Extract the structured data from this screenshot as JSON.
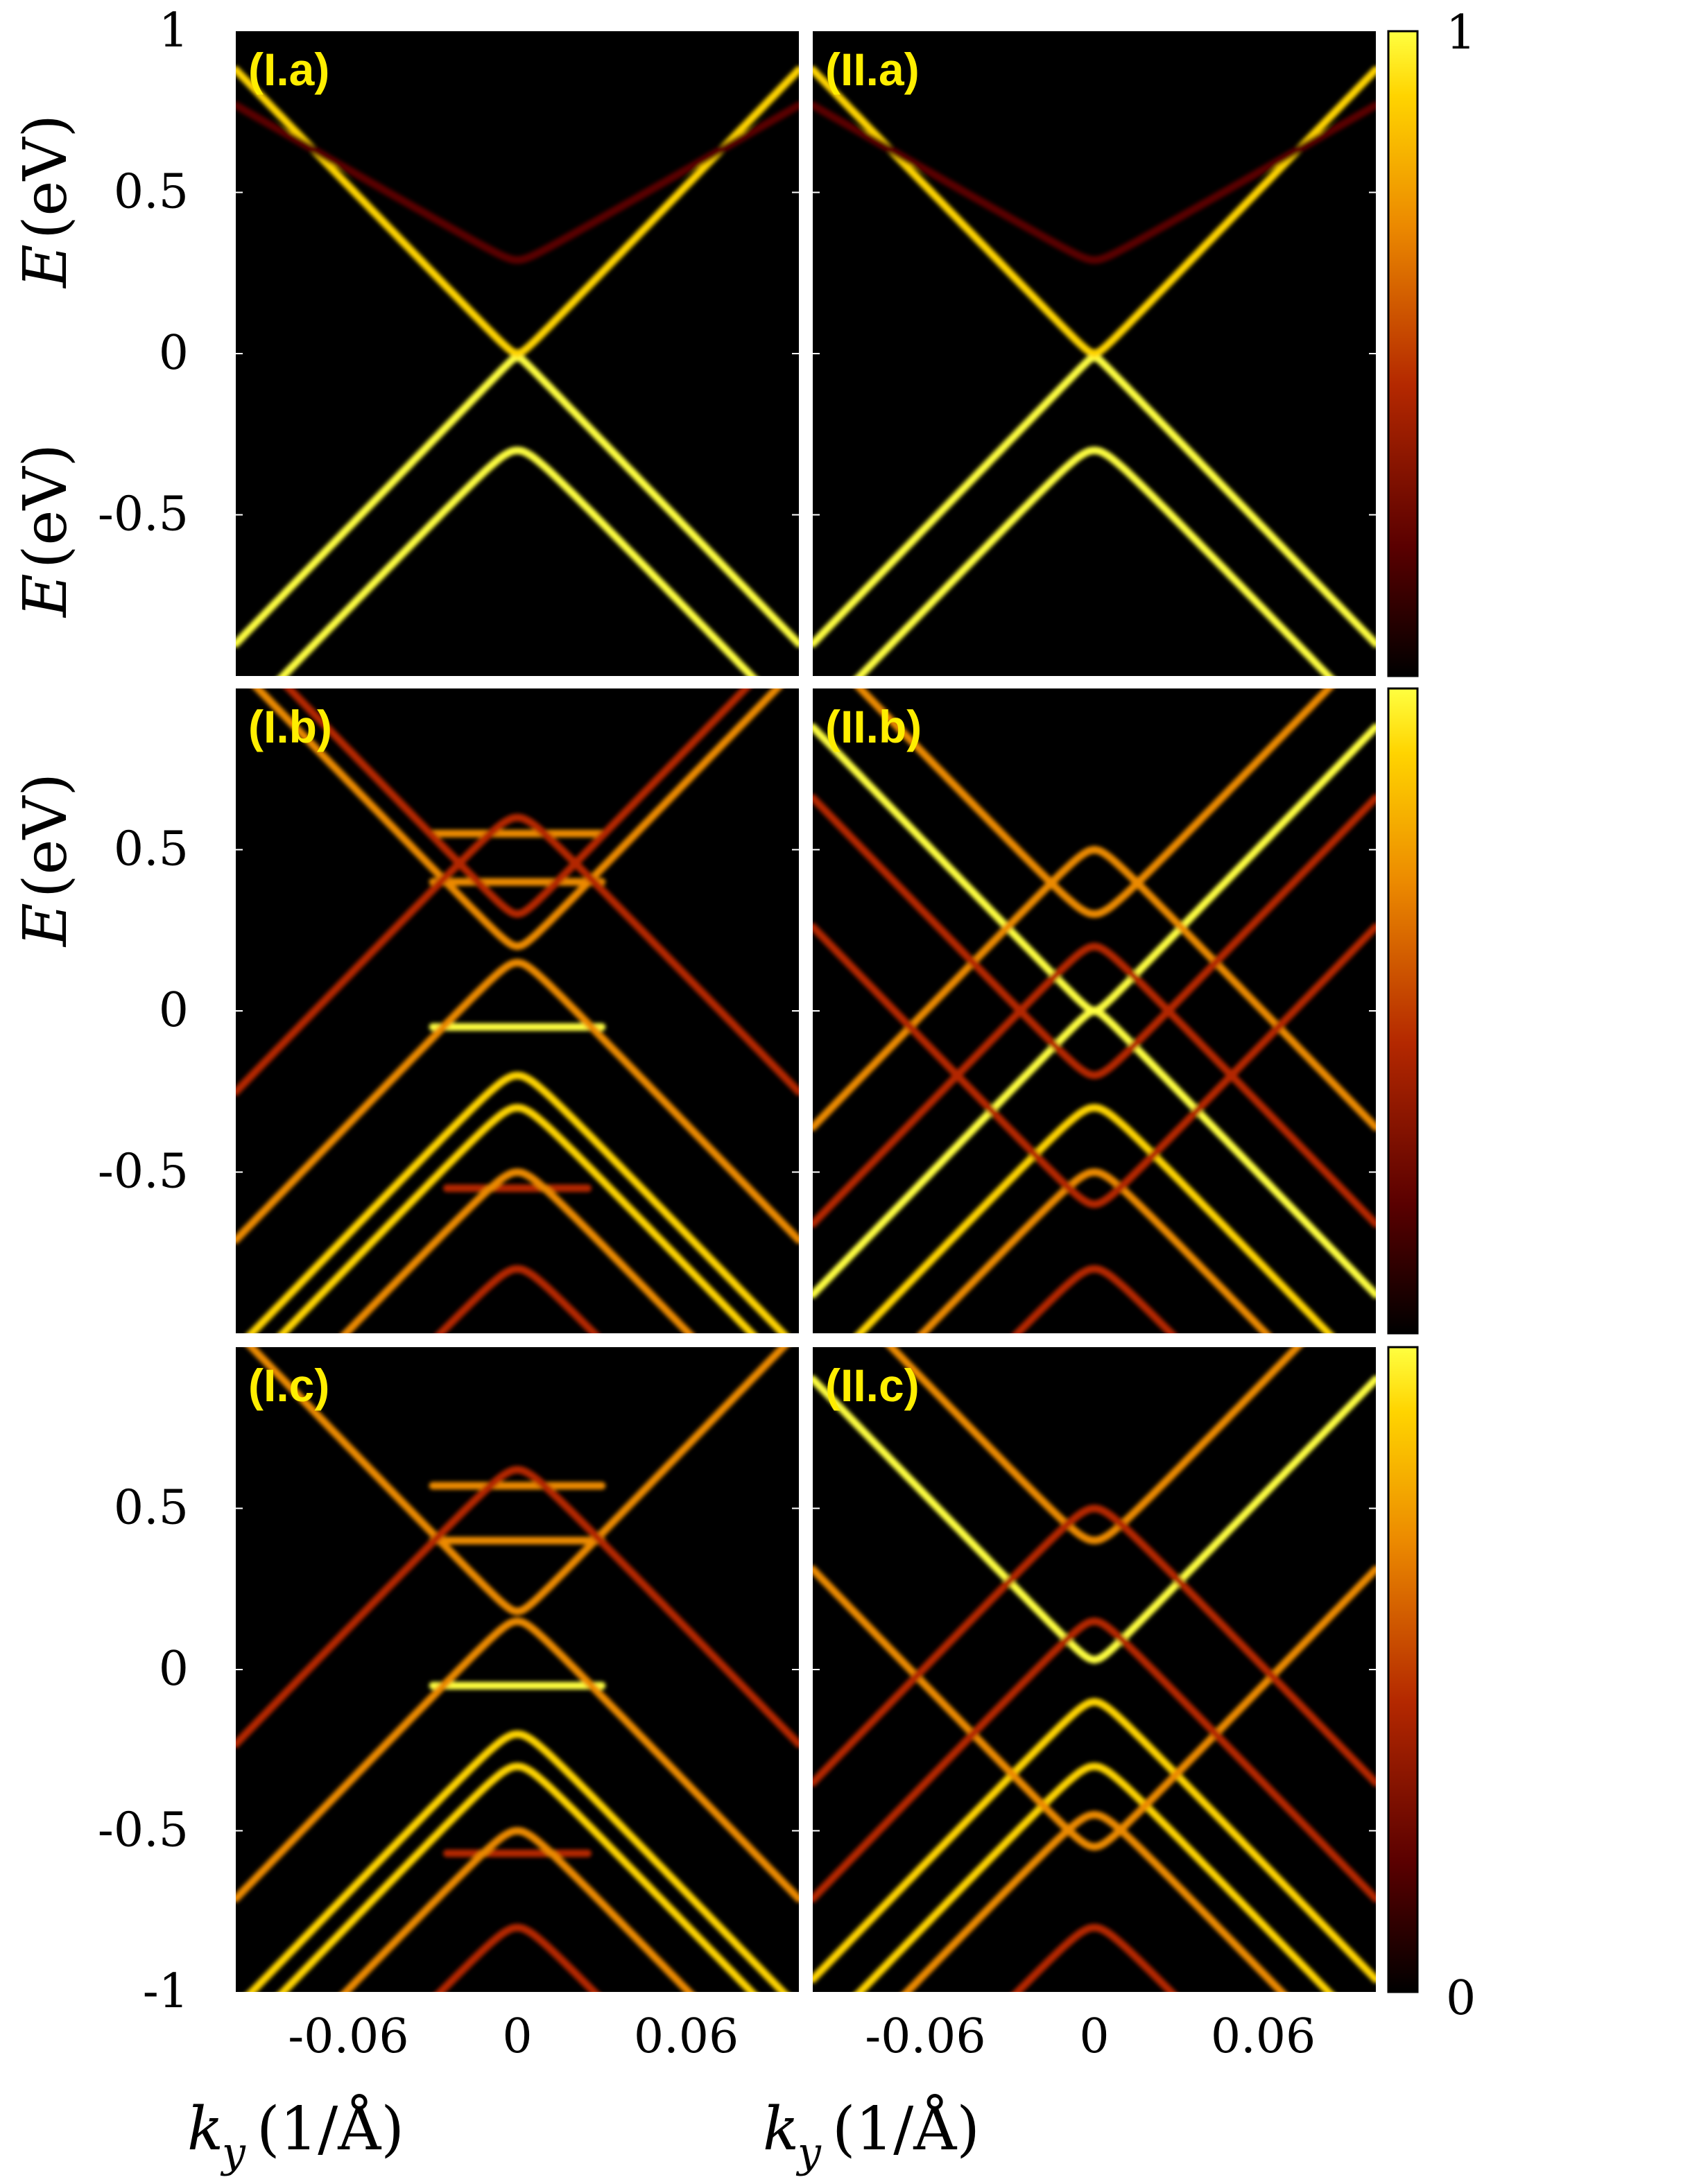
{
  "chart_data": {
    "type": "heatmap",
    "colormap": [
      "#000000",
      "#5a0000",
      "#b42800",
      "#ec8a00",
      "#ffd400",
      "#ffff40"
    ],
    "colorbar": {
      "min_label": "1",
      "max_label": "0",
      "top_label": "1",
      "bottom_label": "0",
      "range": [
        0,
        1
      ]
    },
    "xlim": [
      -0.1,
      0.1
    ],
    "ylim": [
      -1,
      1
    ],
    "x_ticks": [
      "-0.06",
      "0",
      "0.06"
    ],
    "y_ticks_top": [
      "1",
      "0.5",
      "0",
      "-0.5"
    ],
    "y_ticks_mid": [
      "0.5",
      "0",
      "-0.5"
    ],
    "y_ticks_bottom": [
      "0.5",
      "0",
      "-0.5",
      "-1"
    ],
    "ylabel_var": "E",
    "ylabel_unit": "(eV)",
    "xlabel_var": "k",
    "xlabel_sub": "y",
    "xlabel_unit": "(1/Å)",
    "panels": [
      {
        "label": "(I.a)",
        "row": 0,
        "col": 0,
        "bands": [
          {
            "type": "hyperbola",
            "center": -0.01,
            "gap": 0.01,
            "v": 9,
            "sign": -1,
            "weight": 1.0
          },
          {
            "type": "hyperbola",
            "center": -0.3,
            "gap": 0.05,
            "v": 9,
            "sign": -1,
            "weight": 0.95
          },
          {
            "type": "hyperbola",
            "center": 0.0,
            "gap": 0.02,
            "v": 9,
            "sign": 1,
            "weight": 0.7
          },
          {
            "type": "hyperbola",
            "center": 0.29,
            "gap": 0.02,
            "v": 5,
            "sign": 1,
            "weight": 0.25
          }
        ]
      },
      {
        "label": "(II.a)",
        "row": 0,
        "col": 1,
        "bands": [
          {
            "type": "hyperbola",
            "center": -0.01,
            "gap": 0.01,
            "v": 9,
            "sign": -1,
            "weight": 1.0
          },
          {
            "type": "hyperbola",
            "center": -0.3,
            "gap": 0.05,
            "v": 9,
            "sign": -1,
            "weight": 0.95
          },
          {
            "type": "hyperbola",
            "center": 0.0,
            "gap": 0.02,
            "v": 9,
            "sign": 1,
            "weight": 0.7
          },
          {
            "type": "hyperbola",
            "center": 0.29,
            "gap": 0.02,
            "v": 5,
            "sign": 1,
            "weight": 0.25
          }
        ]
      },
      {
        "label": "(I.b)",
        "row": 1,
        "col": 0,
        "bands": [
          {
            "type": "flat",
            "energy": -0.05,
            "halfwidth": 0.03,
            "weight": 1.0
          },
          {
            "type": "flat",
            "energy": 0.55,
            "halfwidth": 0.03,
            "weight": 0.6
          },
          {
            "type": "flat",
            "energy": -0.55,
            "halfwidth": 0.025,
            "weight": 0.45
          },
          {
            "type": "flat",
            "energy": 0.4,
            "halfwidth": 0.03,
            "weight": 0.55
          },
          {
            "type": "hyperbola",
            "center": -0.3,
            "gap": 0.05,
            "v": 9,
            "sign": -1,
            "weight": 0.85
          },
          {
            "type": "hyperbola",
            "center": -0.2,
            "gap": 0.05,
            "v": 9,
            "sign": -1,
            "weight": 0.7
          },
          {
            "type": "hyperbola",
            "center": 0.2,
            "gap": 0.03,
            "v": 9,
            "sign": 1,
            "weight": 0.5
          },
          {
            "type": "hyperbola",
            "center": 0.15,
            "gap": 0.04,
            "v": 9,
            "sign": -1,
            "weight": 0.5
          },
          {
            "type": "hyperbola",
            "center": -0.5,
            "gap": 0.05,
            "v": 9,
            "sign": -1,
            "weight": 0.6
          },
          {
            "type": "hyperbola",
            "center": 0.6,
            "gap": 0.05,
            "v": 9,
            "sign": -1,
            "weight": 0.45
          },
          {
            "type": "hyperbola",
            "center": -0.8,
            "gap": 0.05,
            "v": 9,
            "sign": -1,
            "weight": 0.35
          },
          {
            "type": "hyperbola",
            "center": 0.3,
            "gap": 0.03,
            "v": 9,
            "sign": 1,
            "weight": 0.3
          }
        ]
      },
      {
        "label": "(II.b)",
        "row": 1,
        "col": 1,
        "bands": [
          {
            "type": "hyperbola",
            "center": 0.0,
            "gap": 0.02,
            "v": 9,
            "sign": 1,
            "weight": 0.9
          },
          {
            "type": "hyperbola",
            "center": 0.0,
            "gap": 0.02,
            "v": 9,
            "sign": -1,
            "weight": 0.9
          },
          {
            "type": "hyperbola",
            "center": -0.3,
            "gap": 0.05,
            "v": 9,
            "sign": -1,
            "weight": 0.85
          },
          {
            "type": "hyperbola",
            "center": 0.5,
            "gap": 0.04,
            "v": 9,
            "sign": -1,
            "weight": 0.55
          },
          {
            "type": "hyperbola",
            "center": 0.3,
            "gap": 0.05,
            "v": 9,
            "sign": 1,
            "weight": 0.55
          },
          {
            "type": "hyperbola",
            "center": -0.5,
            "gap": 0.05,
            "v": 9,
            "sign": -1,
            "weight": 0.6
          },
          {
            "type": "hyperbola",
            "center": -0.6,
            "gap": 0.04,
            "v": 9,
            "sign": 1,
            "weight": 0.4
          },
          {
            "type": "hyperbola",
            "center": 0.2,
            "gap": 0.04,
            "v": 9,
            "sign": -1,
            "weight": 0.45
          },
          {
            "type": "hyperbola",
            "center": -0.8,
            "gap": 0.05,
            "v": 9,
            "sign": -1,
            "weight": 0.35
          },
          {
            "type": "hyperbola",
            "center": -0.2,
            "gap": 0.04,
            "v": 9,
            "sign": 1,
            "weight": 0.35
          }
        ]
      },
      {
        "label": "(I.c)",
        "row": 2,
        "col": 0,
        "bands": [
          {
            "type": "flat",
            "energy": -0.05,
            "halfwidth": 0.03,
            "weight": 1.0
          },
          {
            "type": "flat",
            "energy": 0.57,
            "halfwidth": 0.03,
            "weight": 0.6
          },
          {
            "type": "flat",
            "energy": -0.57,
            "halfwidth": 0.025,
            "weight": 0.45
          },
          {
            "type": "flat",
            "energy": 0.4,
            "halfwidth": 0.03,
            "weight": 0.55
          },
          {
            "type": "hyperbola",
            "center": -0.3,
            "gap": 0.05,
            "v": 9,
            "sign": -1,
            "weight": 0.85
          },
          {
            "type": "hyperbola",
            "center": -0.2,
            "gap": 0.05,
            "v": 9,
            "sign": -1,
            "weight": 0.7
          },
          {
            "type": "hyperbola",
            "center": 0.18,
            "gap": 0.03,
            "v": 9,
            "sign": 1,
            "weight": 0.5
          },
          {
            "type": "hyperbola",
            "center": 0.15,
            "gap": 0.04,
            "v": 9,
            "sign": -1,
            "weight": 0.5
          },
          {
            "type": "hyperbola",
            "center": -0.5,
            "gap": 0.05,
            "v": 9,
            "sign": -1,
            "weight": 0.6
          },
          {
            "type": "hyperbola",
            "center": 0.62,
            "gap": 0.05,
            "v": 9,
            "sign": -1,
            "weight": 0.45
          },
          {
            "type": "hyperbola",
            "center": -0.8,
            "gap": 0.05,
            "v": 9,
            "sign": -1,
            "weight": 0.35
          }
        ]
      },
      {
        "label": "(II.c)",
        "row": 2,
        "col": 1,
        "bands": [
          {
            "type": "hyperbola",
            "center": 0.03,
            "gap": 0.03,
            "v": 9,
            "sign": 1,
            "weight": 1.0
          },
          {
            "type": "hyperbola",
            "center": -0.1,
            "gap": 0.04,
            "v": 9,
            "sign": -1,
            "weight": 0.7
          },
          {
            "type": "hyperbola",
            "center": -0.3,
            "gap": 0.05,
            "v": 9,
            "sign": -1,
            "weight": 0.85
          },
          {
            "type": "hyperbola",
            "center": -0.55,
            "gap": 0.04,
            "v": 9,
            "sign": 1,
            "weight": 0.55
          },
          {
            "type": "hyperbola",
            "center": 0.4,
            "gap": 0.05,
            "v": 9,
            "sign": 1,
            "weight": 0.5
          },
          {
            "type": "hyperbola",
            "center": 0.5,
            "gap": 0.05,
            "v": 9,
            "sign": -1,
            "weight": 0.45
          },
          {
            "type": "hyperbola",
            "center": -0.45,
            "gap": 0.05,
            "v": 9,
            "sign": -1,
            "weight": 0.6
          },
          {
            "type": "hyperbola",
            "center": -0.8,
            "gap": 0.05,
            "v": 9,
            "sign": -1,
            "weight": 0.35
          },
          {
            "type": "hyperbola",
            "center": 0.15,
            "gap": 0.04,
            "v": 9,
            "sign": -1,
            "weight": 0.4
          }
        ]
      }
    ]
  }
}
